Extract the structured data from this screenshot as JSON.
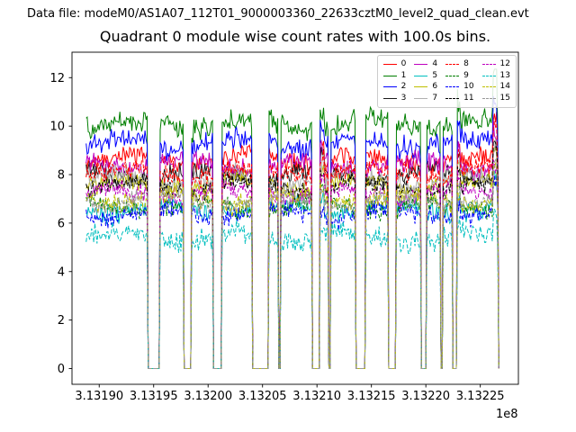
{
  "header": {
    "data_file_label": "Data file: modeM0/AS1A07_112T01_9000003360_22633cztM0_level2_quad_clean.evt"
  },
  "chart_data": {
    "type": "line",
    "title": "Quadrant 0 module wise count rates with 100.0s bins.",
    "xlabel": "",
    "ylabel": "",
    "x_offset_label": "1e8",
    "xlim": [
      313187500,
      313228500
    ],
    "ylim": [
      -0.65,
      13.05
    ],
    "xticks": [
      313190000,
      313195000,
      313200000,
      313205000,
      313210000,
      313215000,
      313220000,
      313225000
    ],
    "xtick_labels": [
      "3.13190",
      "3.13195",
      "3.13200",
      "3.13205",
      "3.13210",
      "3.13215",
      "3.13220",
      "3.13225"
    ],
    "yticks": [
      0,
      2,
      4,
      6,
      8,
      10,
      12
    ],
    "ytick_labels": [
      "0",
      "2",
      "4",
      "6",
      "8",
      "10",
      "12"
    ],
    "grid": false,
    "bin_seconds": 100,
    "t_start": 313188800,
    "t_end": 313226700,
    "legend": {
      "position": "upper right",
      "ncol": 4
    },
    "segments": [
      [
        313188800,
        313194400
      ],
      [
        313195600,
        313197700
      ],
      [
        313198500,
        313200400
      ],
      [
        313201300,
        313204000
      ],
      [
        313205600,
        313206400
      ],
      [
        313206700,
        313209500
      ],
      [
        313210300,
        313211000
      ],
      [
        313211300,
        313213500
      ],
      [
        313214500,
        313216500
      ],
      [
        313217300,
        313219500
      ],
      [
        313220100,
        313221300
      ],
      [
        313221600,
        313222400
      ],
      [
        313222900,
        313226600
      ]
    ],
    "spikes": [
      {
        "x": 313210450,
        "boost": 1.08
      },
      {
        "x": 313222950,
        "boost": 1.08
      },
      {
        "x": 313226350,
        "boost": 1.18
      }
    ],
    "series": [
      {
        "name": "0",
        "color": "#ff0000",
        "dash": false,
        "mean": 8.6,
        "amp": 0.42
      },
      {
        "name": "1",
        "color": "#007f00",
        "dash": false,
        "mean": 10.1,
        "amp": 0.45
      },
      {
        "name": "2",
        "color": "#0000ff",
        "dash": false,
        "mean": 9.3,
        "amp": 0.42
      },
      {
        "name": "3",
        "color": "#1a1a1a",
        "dash": false,
        "mean": 8.0,
        "amp": 0.4
      },
      {
        "name": "4",
        "color": "#bf00bf",
        "dash": false,
        "mean": 8.4,
        "amp": 0.4
      },
      {
        "name": "5",
        "color": "#00bfbf",
        "dash": false,
        "mean": 6.6,
        "amp": 0.4
      },
      {
        "name": "6",
        "color": "#bfbf00",
        "dash": false,
        "mean": 7.6,
        "amp": 0.4
      },
      {
        "name": "7",
        "color": "#b0b0b0",
        "dash": false,
        "mean": 7.8,
        "amp": 0.4
      },
      {
        "name": "8",
        "color": "#ff0000",
        "dash": true,
        "mean": 8.1,
        "amp": 0.4
      },
      {
        "name": "9",
        "color": "#007f00",
        "dash": true,
        "mean": 6.7,
        "amp": 0.4
      },
      {
        "name": "10",
        "color": "#0000ff",
        "dash": true,
        "mean": 6.4,
        "amp": 0.4
      },
      {
        "name": "11",
        "color": "#000000",
        "dash": true,
        "mean": 7.5,
        "amp": 0.4
      },
      {
        "name": "12",
        "color": "#bf00bf",
        "dash": true,
        "mean": 7.2,
        "amp": 0.4
      },
      {
        "name": "13",
        "color": "#00bfbf",
        "dash": true,
        "mean": 5.4,
        "amp": 0.42
      },
      {
        "name": "14",
        "color": "#bfbf00",
        "dash": true,
        "mean": 7.0,
        "amp": 0.4
      },
      {
        "name": "15",
        "color": "#999999",
        "dash": true,
        "mean": 6.9,
        "amp": 0.4
      }
    ]
  }
}
